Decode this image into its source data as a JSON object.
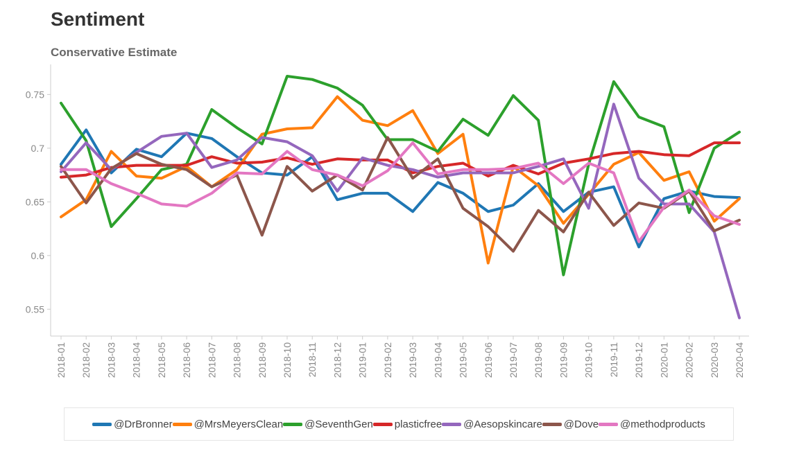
{
  "title": "Sentiment",
  "subtitle": "Conservative Estimate",
  "chart_data": {
    "type": "line",
    "title": "Sentiment",
    "subtitle": "Conservative Estimate",
    "xlabel": "",
    "ylabel": "",
    "ylim": [
      0.525,
      0.778
    ],
    "yticks": [
      0.55,
      0.6,
      0.65,
      0.7,
      0.75
    ],
    "ytick_labels": [
      "0.55",
      "0.6",
      "0.65",
      "0.7",
      "0.75"
    ],
    "legend_position": "bottom",
    "grid": false,
    "categories": [
      "2018-01",
      "2018-02",
      "2018-03",
      "2018-04",
      "2018-05",
      "2018-06",
      "2018-07",
      "2018-08",
      "2018-09",
      "2018-10",
      "2018-11",
      "2018-12",
      "2019-01",
      "2019-02",
      "2019-03",
      "2019-04",
      "2019-05",
      "2019-06",
      "2019-07",
      "2019-08",
      "2019-09",
      "2019-10",
      "2019-11",
      "2019-12",
      "2020-01",
      "2020-02",
      "2020-03",
      "2020-04"
    ],
    "series": [
      {
        "name": "@DrBronner",
        "color": "#1f77b4",
        "values": [
          0.685,
          0.717,
          0.677,
          0.699,
          0.692,
          0.714,
          0.709,
          0.692,
          0.677,
          0.675,
          0.692,
          0.652,
          0.658,
          0.658,
          0.641,
          0.668,
          0.658,
          0.641,
          0.647,
          0.667,
          0.641,
          0.659,
          0.664,
          0.608,
          0.653,
          0.66,
          0.655,
          0.654
        ]
      },
      {
        "name": "@MrsMeyersClean",
        "color": "#ff7f0e",
        "values": [
          0.636,
          0.652,
          0.697,
          0.674,
          0.672,
          0.683,
          0.664,
          0.68,
          0.713,
          0.718,
          0.719,
          0.748,
          0.726,
          0.721,
          0.735,
          0.695,
          0.713,
          0.593,
          0.683,
          0.665,
          0.63,
          0.657,
          0.685,
          0.696,
          0.67,
          0.678,
          0.632,
          0.653
        ]
      },
      {
        "name": "@SeventhGen",
        "color": "#2ca02c",
        "values": [
          0.742,
          0.707,
          0.627,
          0.653,
          0.68,
          0.685,
          0.736,
          0.719,
          0.704,
          0.767,
          0.764,
          0.756,
          0.74,
          0.708,
          0.708,
          0.697,
          0.727,
          0.712,
          0.749,
          0.726,
          0.582,
          0.685,
          0.762,
          0.729,
          0.72,
          0.64,
          0.7,
          0.715
        ]
      },
      {
        "name": "plasticfree",
        "color": "#d62728",
        "values": [
          0.673,
          0.675,
          0.682,
          0.684,
          0.684,
          0.684,
          0.692,
          0.686,
          0.687,
          0.691,
          0.685,
          0.69,
          0.689,
          0.689,
          0.677,
          0.683,
          0.686,
          0.674,
          0.684,
          0.676,
          0.686,
          0.69,
          0.695,
          0.697,
          0.694,
          0.693,
          0.705,
          0.705
        ]
      },
      {
        "name": "@Aesopskincare",
        "color": "#9467bd",
        "values": [
          0.678,
          0.705,
          0.68,
          0.696,
          0.711,
          0.714,
          0.682,
          0.689,
          0.71,
          0.706,
          0.693,
          0.66,
          0.691,
          0.684,
          0.68,
          0.673,
          0.677,
          0.677,
          0.677,
          0.683,
          0.69,
          0.644,
          0.741,
          0.672,
          0.648,
          0.648,
          0.622,
          0.542
        ]
      },
      {
        "name": "@Dove",
        "color": "#8c564b",
        "values": [
          0.683,
          0.649,
          0.681,
          0.695,
          0.685,
          0.68,
          0.664,
          0.675,
          0.619,
          0.683,
          0.66,
          0.675,
          0.661,
          0.71,
          0.672,
          0.69,
          0.644,
          0.627,
          0.604,
          0.642,
          0.622,
          0.659,
          0.628,
          0.649,
          0.644,
          0.66,
          0.623,
          0.633
        ]
      },
      {
        "name": "@methodproducts",
        "color": "#e377c2",
        "values": [
          0.68,
          0.68,
          0.667,
          0.658,
          0.648,
          0.646,
          0.658,
          0.677,
          0.676,
          0.697,
          0.68,
          0.675,
          0.665,
          0.679,
          0.705,
          0.676,
          0.68,
          0.68,
          0.681,
          0.686,
          0.667,
          0.686,
          0.677,
          0.613,
          0.645,
          0.661,
          0.637,
          0.629
        ]
      }
    ]
  }
}
